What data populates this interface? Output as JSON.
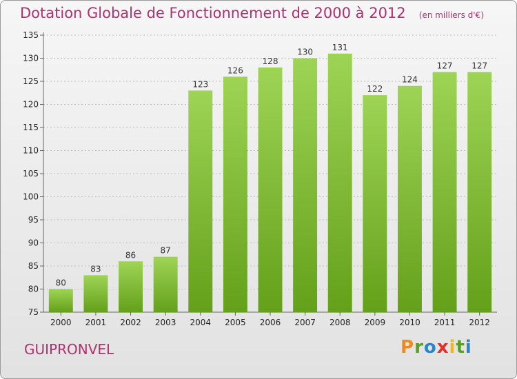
{
  "title": "Dotation Globale de Fonctionnement de 2000 à 2012",
  "unit_note": "(en milliers d'€)",
  "commune": "GUIPRONVEL",
  "logo_text": "Proxiti",
  "colors": {
    "title": "#b03070",
    "bar_light": "#9ed455",
    "bar_dark": "#64a01a",
    "grid": "#bdbdbd"
  },
  "chart_data": {
    "type": "bar",
    "title": "Dotation Globale de Fonctionnement de 2000 à 2012",
    "subtitle": "(en milliers d'€)",
    "xlabel": "",
    "ylabel": "",
    "categories": [
      "2000",
      "2001",
      "2002",
      "2003",
      "2004",
      "2005",
      "2006",
      "2007",
      "2008",
      "2009",
      "2010",
      "2011",
      "2012"
    ],
    "values": [
      80,
      83,
      86,
      87,
      123,
      126,
      128,
      130,
      131,
      122,
      124,
      127,
      127
    ],
    "ylim": [
      75,
      135
    ],
    "yticks": [
      75,
      80,
      85,
      90,
      95,
      100,
      105,
      110,
      115,
      120,
      125,
      130,
      135
    ],
    "grid": true,
    "legend": "none"
  }
}
